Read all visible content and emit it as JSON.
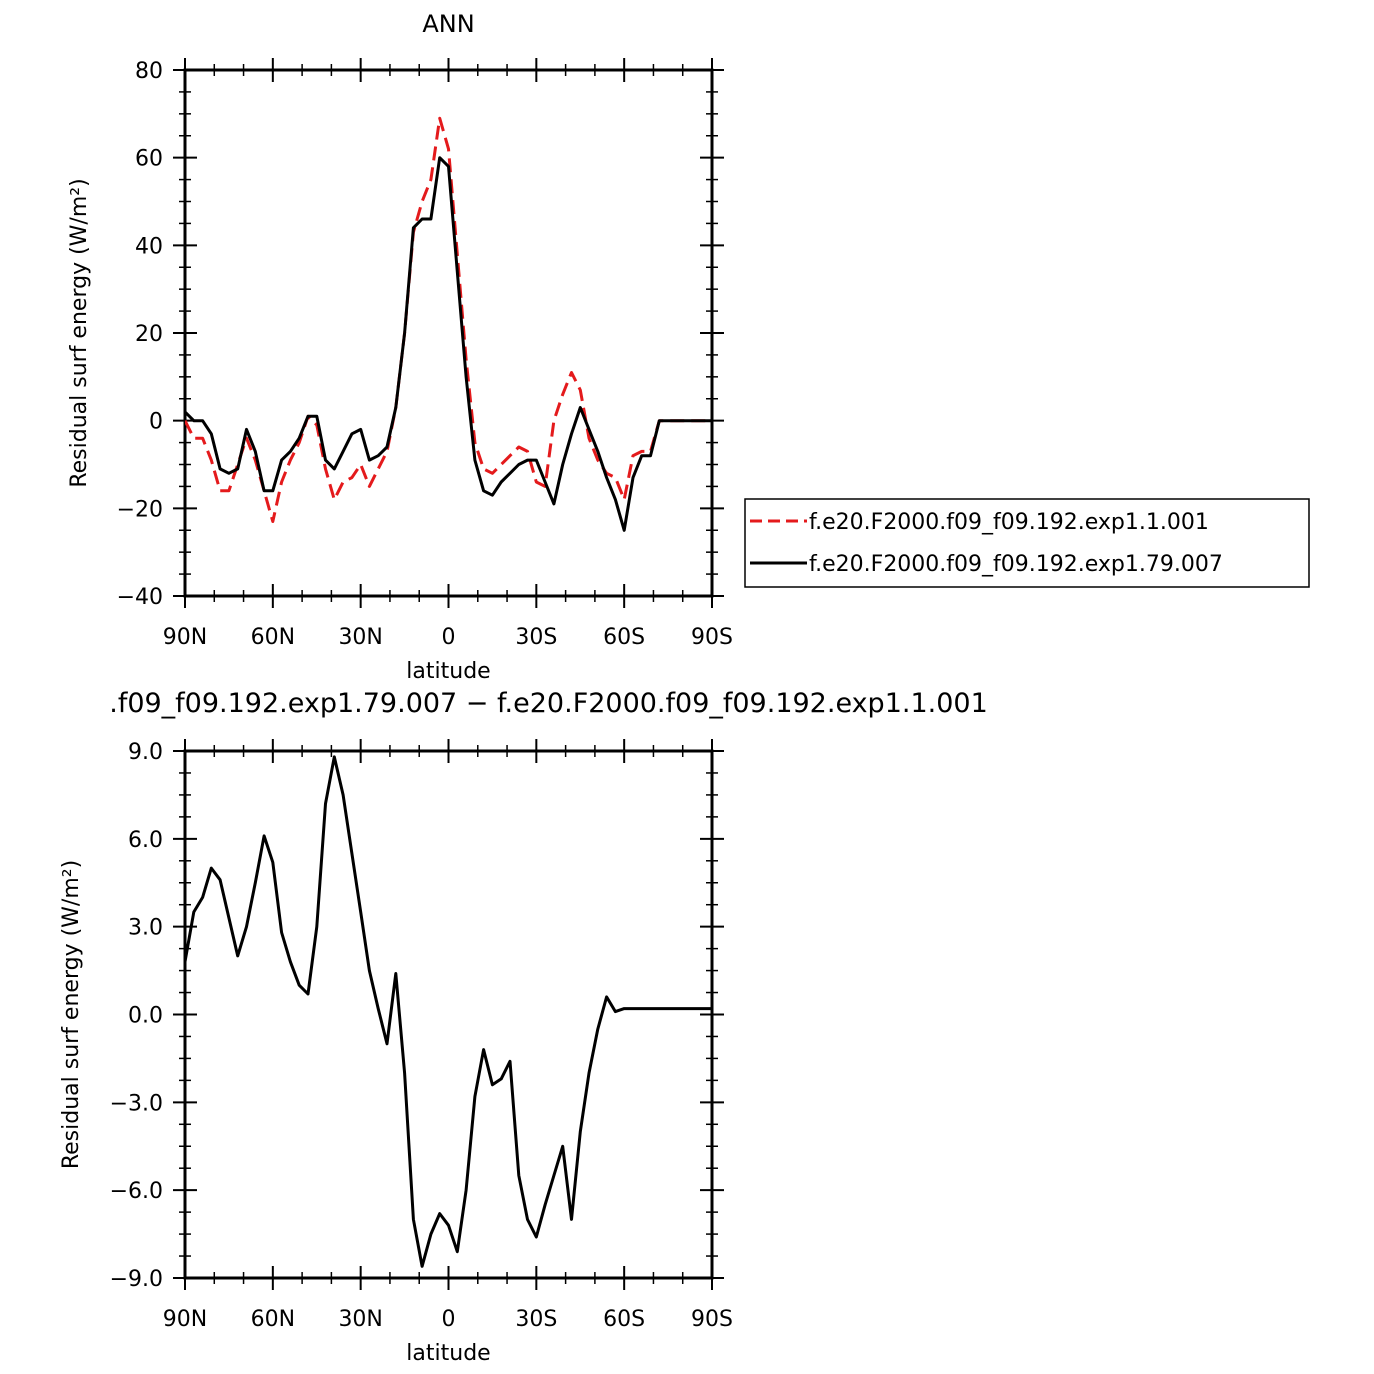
{
  "chart_data": [
    {
      "type": "line",
      "title": "ANN",
      "xlabel": "latitude",
      "ylabel": "Residual surf energy (W/m²)",
      "xlim": [
        90,
        -90
      ],
      "ylim": [
        -40,
        80
      ],
      "x_ticks": [
        90,
        60,
        30,
        0,
        -30,
        -60,
        -90
      ],
      "x_tick_labels": [
        "90N",
        "60N",
        "30N",
        "0",
        "30S",
        "60S",
        "90S"
      ],
      "y_ticks": [
        -40,
        -20,
        0,
        20,
        40,
        60,
        80
      ],
      "y_tick_labels": [
        "−40",
        "−20",
        "0",
        "20",
        "40",
        "60",
        "80"
      ],
      "legend": {
        "placement": "right",
        "entries": [
          {
            "label": "f.e20.F2000.f09_f09.192.exp1.1.001",
            "color": "#e41a1c",
            "dash": true
          },
          {
            "label": "f.e20.F2000.f09_f09.192.exp1.79.007",
            "color": "#000000",
            "dash": false
          }
        ]
      },
      "series": [
        {
          "name": "f.e20.F2000.f09_f09.192.exp1.1.001",
          "color": "#e41a1c",
          "dash": true,
          "x": [
            90,
            87,
            84,
            81,
            78,
            75,
            72,
            69,
            66,
            63,
            60,
            57,
            54,
            51,
            48,
            45,
            42,
            39,
            36,
            33,
            30,
            27,
            24,
            21,
            18,
            15,
            12,
            9,
            6,
            3,
            0,
            -3,
            -6,
            -9,
            -12,
            -15,
            -18,
            -21,
            -24,
            -27,
            -30,
            -33,
            -36,
            -39,
            -42,
            -45,
            -48,
            -51,
            -54,
            -57,
            -60,
            -63,
            -66,
            -69,
            -72,
            -75,
            -78,
            -81,
            -84,
            -87,
            -90
          ],
          "y": [
            0,
            -4,
            -4,
            -9,
            -16,
            -16,
            -10,
            -4,
            -9,
            -16,
            -23,
            -14,
            -9,
            -5,
            1,
            -1,
            -11,
            -18,
            -14,
            -13,
            -10,
            -15,
            -11,
            -7,
            3,
            20,
            43,
            50,
            55,
            69,
            62,
            38,
            14,
            -5,
            -11,
            -12,
            -10,
            -8,
            -6,
            -7,
            -14,
            -15,
            0,
            6,
            11,
            7,
            -4,
            -9,
            -12,
            -13,
            -18,
            -8,
            -7,
            -7,
            0,
            0,
            0,
            0,
            0,
            0,
            0
          ]
        },
        {
          "name": "f.e20.F2000.f09_f09.192.exp1.79.007",
          "color": "#000000",
          "dash": false,
          "x": [
            90,
            87,
            84,
            81,
            78,
            75,
            72,
            69,
            66,
            63,
            60,
            57,
            54,
            51,
            48,
            45,
            42,
            39,
            36,
            33,
            30,
            27,
            24,
            21,
            18,
            15,
            12,
            9,
            6,
            3,
            0,
            -3,
            -6,
            -9,
            -12,
            -15,
            -18,
            -21,
            -24,
            -27,
            -30,
            -33,
            -36,
            -39,
            -42,
            -45,
            -48,
            -51,
            -54,
            -57,
            -60,
            -63,
            -66,
            -69,
            -72,
            -75,
            -78,
            -81,
            -84,
            -87,
            -90
          ],
          "y": [
            2,
            0,
            0,
            -3,
            -11,
            -12,
            -11,
            -2,
            -7,
            -16,
            -16,
            -9,
            -7,
            -4,
            1,
            1,
            -9,
            -11,
            -7,
            -3,
            -2,
            -9,
            -8,
            -6,
            3,
            20,
            44,
            46,
            46,
            60,
            58,
            34,
            10,
            -9,
            -16,
            -17,
            -14,
            -12,
            -10,
            -9,
            -9,
            -14,
            -19,
            -10,
            -3,
            3,
            -2,
            -7,
            -13,
            -18,
            -25,
            -13,
            -8,
            -8,
            0,
            0,
            0,
            0,
            0,
            0,
            0
          ]
        }
      ]
    },
    {
      "type": "line",
      "title": ".f09_f09.192.exp1.79.007 − f.e20.F2000.f09_f09.192.exp1.1.001",
      "xlabel": "latitude",
      "ylabel": "Residual surf energy (W/m²)",
      "xlim": [
        90,
        -90
      ],
      "ylim": [
        -9,
        9
      ],
      "x_ticks": [
        90,
        60,
        30,
        0,
        -30,
        -60,
        -90
      ],
      "x_tick_labels": [
        "90N",
        "60N",
        "30N",
        "0",
        "30S",
        "60S",
        "90S"
      ],
      "y_ticks": [
        -9,
        -6,
        -3,
        0,
        3,
        6,
        9
      ],
      "y_tick_labels": [
        "−9.0",
        "−6.0",
        "−3.0",
        "0.0",
        "3.0",
        "6.0",
        "9.0"
      ],
      "series": [
        {
          "color": "#000000",
          "dash": false,
          "x": [
            90,
            87,
            84,
            81,
            78,
            75,
            72,
            69,
            66,
            63,
            60,
            57,
            54,
            51,
            48,
            45,
            42,
            39,
            36,
            33,
            30,
            27,
            24,
            21,
            18,
            15,
            12,
            9,
            6,
            3,
            0,
            -3,
            -6,
            -9,
            -12,
            -15,
            -18,
            -21,
            -24,
            -27,
            -30,
            -33,
            -36,
            -39,
            -42,
            -45,
            -48,
            -51,
            -54,
            -57,
            -60,
            -63,
            -66,
            -69,
            -72,
            -75,
            -78,
            -81,
            -84,
            -87,
            -90
          ],
          "y": [
            1.8,
            3.5,
            4.0,
            5.0,
            4.6,
            3.3,
            2.0,
            3.0,
            4.5,
            6.1,
            5.2,
            2.8,
            1.8,
            1.0,
            0.7,
            3.0,
            7.2,
            8.8,
            7.5,
            5.5,
            3.5,
            1.5,
            0.2,
            -1.0,
            1.4,
            -2.0,
            -7.0,
            -8.6,
            -7.5,
            -6.8,
            -7.2,
            -8.1,
            -6.0,
            -2.8,
            -1.2,
            -2.4,
            -2.2,
            -1.6,
            -5.5,
            -7.0,
            -7.6,
            -6.5,
            -5.5,
            -4.5,
            -7.0,
            -4.0,
            -2.0,
            -0.5,
            0.6,
            0.1,
            0.2,
            0.2,
            0.2,
            0.2,
            0.2,
            0.2,
            0.2,
            0.2,
            0.2,
            0.2,
            0.2
          ]
        }
      ]
    }
  ]
}
